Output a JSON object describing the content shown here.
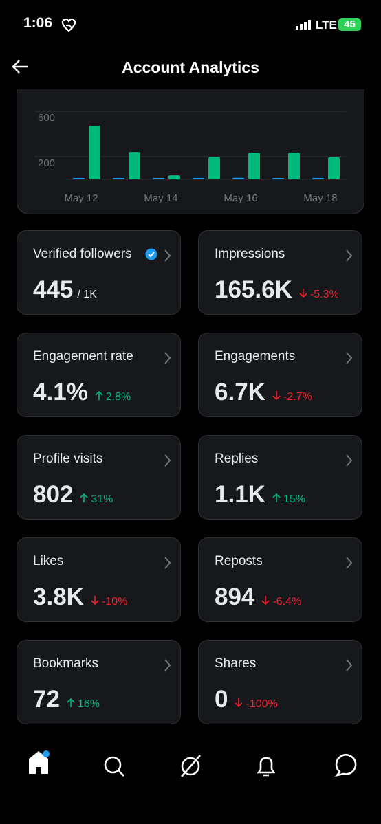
{
  "status_bar": {
    "time": "1:06",
    "network": "LTE",
    "battery": "45"
  },
  "header": {
    "title": "Account Analytics"
  },
  "chart_data": {
    "type": "bar",
    "categories": [
      "May 12",
      null,
      "May 14",
      null,
      "May 16",
      null,
      "May 18"
    ],
    "series": [
      {
        "color": "#1d9bf0",
        "values": [
          12,
          6,
          6,
          10,
          14,
          10,
          6
        ]
      },
      {
        "color": "#00ba7c",
        "values": [
          473,
          242,
          36,
          194,
          236,
          236,
          194
        ]
      }
    ],
    "ylim": [
      0,
      680
    ],
    "yticks": [
      200,
      600
    ],
    "grid": true
  },
  "cards": [
    {
      "title": "Verified followers",
      "value": "445",
      "limit": "/ 1K",
      "verified": true
    },
    {
      "title": "Impressions",
      "value": "165.6K",
      "change": "-5.3%",
      "trend": "down"
    },
    {
      "title": "Engagement rate",
      "value": "4.1%",
      "change": "2.8%",
      "trend": "up"
    },
    {
      "title": "Engagements",
      "value": "6.7K",
      "change": "-2.7%",
      "trend": "down"
    },
    {
      "title": "Profile visits",
      "value": "802",
      "change": "31%",
      "trend": "up"
    },
    {
      "title": "Replies",
      "value": "1.1K",
      "change": "15%",
      "trend": "up"
    },
    {
      "title": "Likes",
      "value": "3.8K",
      "change": "-10%",
      "trend": "down"
    },
    {
      "title": "Reposts",
      "value": "894",
      "change": "-6.4%",
      "trend": "down"
    },
    {
      "title": "Bookmarks",
      "value": "72",
      "change": "16%",
      "trend": "up"
    },
    {
      "title": "Shares",
      "value": "0",
      "change": "-100%",
      "trend": "down"
    }
  ]
}
